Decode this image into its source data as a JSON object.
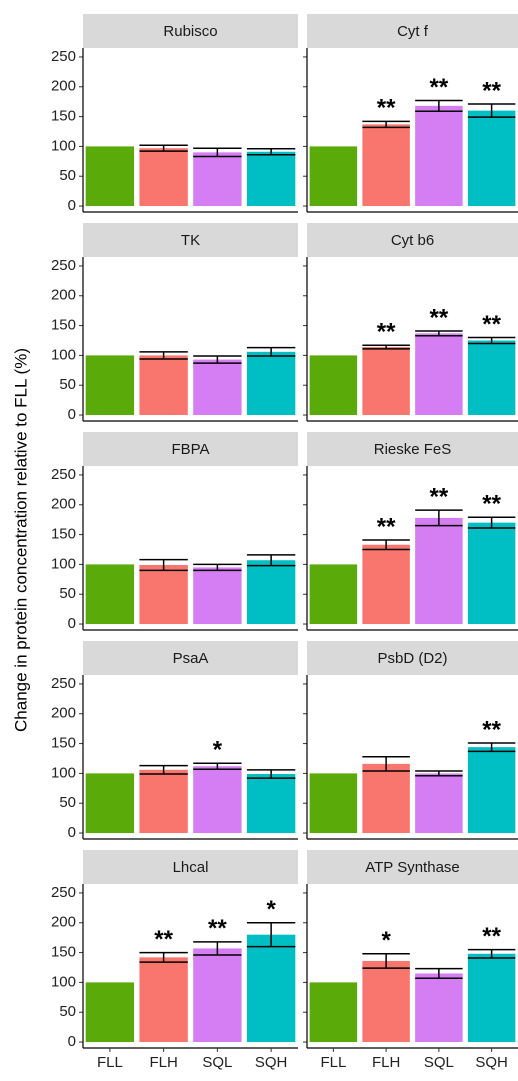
{
  "y_label": "Change in protein concentration relative to FLL (%)",
  "chart_data": [
    {
      "type": "bar",
      "title": "Rubisco",
      "categories": [
        "FLL",
        "FLH",
        "SQL",
        "SQH"
      ],
      "colors": [
        "#5aaa0a",
        "#f8766d",
        "#d57ef3",
        "#00bfc4"
      ],
      "values": [
        100,
        97,
        90,
        91
      ],
      "errors": [
        null,
        5,
        7,
        5
      ],
      "significance": [
        null,
        null,
        null,
        null
      ],
      "ylim": [
        -10,
        265
      ],
      "yticks": [
        0,
        50,
        100,
        150,
        200,
        250
      ]
    },
    {
      "type": "bar",
      "title": "Cyt f",
      "categories": [
        "FLL",
        "FLH",
        "SQL",
        "SQH"
      ],
      "colors": [
        "#5aaa0a",
        "#f8766d",
        "#d57ef3",
        "#00bfc4"
      ],
      "values": [
        100,
        137,
        168,
        160
      ],
      "errors": [
        null,
        5,
        9,
        11
      ],
      "significance": [
        null,
        "**",
        "**",
        "**"
      ],
      "ylim": [
        -10,
        265
      ],
      "yticks": [
        0,
        50,
        100,
        150,
        200,
        250
      ]
    },
    {
      "type": "bar",
      "title": "TK",
      "categories": [
        "FLL",
        "FLH",
        "SQL",
        "SQH"
      ],
      "colors": [
        "#5aaa0a",
        "#f8766d",
        "#d57ef3",
        "#00bfc4"
      ],
      "values": [
        100,
        100,
        93,
        106
      ],
      "errors": [
        null,
        6,
        6,
        7
      ],
      "significance": [
        null,
        null,
        null,
        null
      ],
      "ylim": [
        -10,
        265
      ],
      "yticks": [
        0,
        50,
        100,
        150,
        200,
        250
      ]
    },
    {
      "type": "bar",
      "title": "Cyt b6",
      "categories": [
        "FLL",
        "FLH",
        "SQL",
        "SQH"
      ],
      "colors": [
        "#5aaa0a",
        "#f8766d",
        "#d57ef3",
        "#00bfc4"
      ],
      "values": [
        100,
        114,
        137,
        125
      ],
      "errors": [
        null,
        3,
        4,
        5
      ],
      "significance": [
        null,
        "**",
        "**",
        "**"
      ],
      "ylim": [
        -10,
        265
      ],
      "yticks": [
        0,
        50,
        100,
        150,
        200,
        250
      ]
    },
    {
      "type": "bar",
      "title": "FBPA",
      "categories": [
        "FLL",
        "FLH",
        "SQL",
        "SQH"
      ],
      "colors": [
        "#5aaa0a",
        "#f8766d",
        "#d57ef3",
        "#00bfc4"
      ],
      "values": [
        100,
        99,
        95,
        107
      ],
      "errors": [
        null,
        9,
        5,
        9
      ],
      "significance": [
        null,
        null,
        null,
        null
      ],
      "ylim": [
        -10,
        265
      ],
      "yticks": [
        0,
        50,
        100,
        150,
        200,
        250
      ]
    },
    {
      "type": "bar",
      "title": "Rieske FeS",
      "categories": [
        "FLL",
        "FLH",
        "SQL",
        "SQH"
      ],
      "colors": [
        "#5aaa0a",
        "#f8766d",
        "#d57ef3",
        "#00bfc4"
      ],
      "values": [
        100,
        133,
        178,
        170
      ],
      "errors": [
        null,
        8,
        13,
        9
      ],
      "significance": [
        null,
        "**",
        "**",
        "**"
      ],
      "ylim": [
        -10,
        265
      ],
      "yticks": [
        0,
        50,
        100,
        150,
        200,
        250
      ]
    },
    {
      "type": "bar",
      "title": "PsaA",
      "categories": [
        "FLL",
        "FLH",
        "SQL",
        "SQH"
      ],
      "colors": [
        "#5aaa0a",
        "#f8766d",
        "#d57ef3",
        "#00bfc4"
      ],
      "values": [
        100,
        106,
        112,
        99
      ],
      "errors": [
        null,
        7,
        5,
        7
      ],
      "significance": [
        null,
        null,
        "*",
        null
      ],
      "ylim": [
        -10,
        265
      ],
      "yticks": [
        0,
        50,
        100,
        150,
        200,
        250
      ]
    },
    {
      "type": "bar",
      "title": "PsbD (D2)",
      "categories": [
        "FLL",
        "FLH",
        "SQL",
        "SQH"
      ],
      "colors": [
        "#5aaa0a",
        "#f8766d",
        "#d57ef3",
        "#00bfc4"
      ],
      "values": [
        100,
        116,
        100,
        144
      ],
      "errors": [
        null,
        12,
        4,
        7
      ],
      "significance": [
        null,
        null,
        null,
        "**"
      ],
      "ylim": [
        -10,
        265
      ],
      "yticks": [
        0,
        50,
        100,
        150,
        200,
        250
      ]
    },
    {
      "type": "bar",
      "title": "Lhcal",
      "categories": [
        "FLL",
        "FLH",
        "SQL",
        "SQH"
      ],
      "colors": [
        "#5aaa0a",
        "#f8766d",
        "#d57ef3",
        "#00bfc4"
      ],
      "values": [
        100,
        142,
        157,
        180
      ],
      "errors": [
        null,
        8,
        11,
        20
      ],
      "significance": [
        null,
        "**",
        "**",
        "*"
      ],
      "ylim": [
        -10,
        265
      ],
      "yticks": [
        0,
        50,
        100,
        150,
        200,
        250
      ]
    },
    {
      "type": "bar",
      "title": "ATP Synthase",
      "categories": [
        "FLL",
        "FLH",
        "SQL",
        "SQH"
      ],
      "colors": [
        "#5aaa0a",
        "#f8766d",
        "#d57ef3",
        "#00bfc4"
      ],
      "values": [
        100,
        136,
        115,
        148
      ],
      "errors": [
        null,
        12,
        8,
        7
      ],
      "significance": [
        null,
        "*",
        null,
        "**"
      ],
      "ylim": [
        -10,
        265
      ],
      "yticks": [
        0,
        50,
        100,
        150,
        200,
        250
      ]
    }
  ]
}
